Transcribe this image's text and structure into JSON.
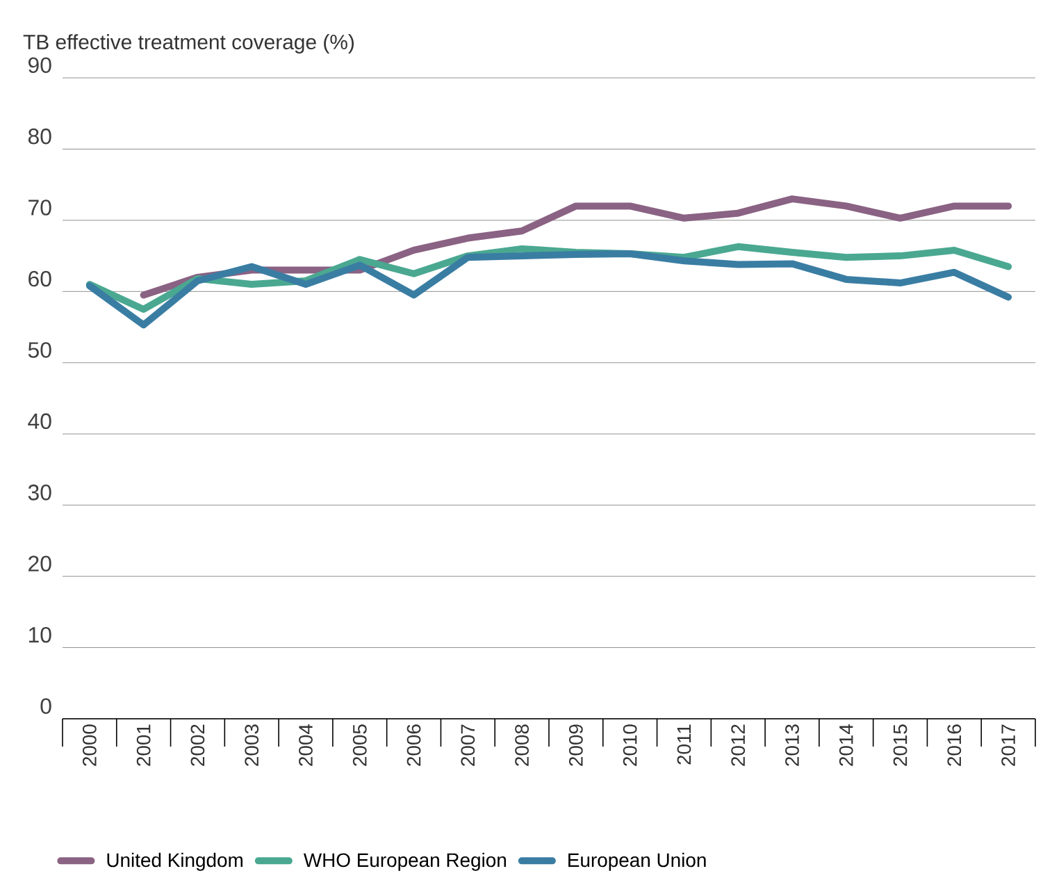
{
  "chart_data": {
    "type": "line",
    "ylabel": "TB effective treatment coverage (%)",
    "categories": [
      "2000",
      "2001",
      "2002",
      "2003",
      "2004",
      "2005",
      "2006",
      "2007",
      "2008",
      "2009",
      "2010",
      "2011",
      "2012",
      "2013",
      "2014",
      "2015",
      "2016",
      "2017"
    ],
    "series": [
      {
        "name": "United Kingdom",
        "color": "#8a6283",
        "values": [
          null,
          59.5,
          62,
          63,
          63,
          63,
          65.8,
          67.5,
          68.5,
          72,
          72,
          70.3,
          71,
          73,
          72,
          70.3,
          72,
          72
        ]
      },
      {
        "name": "WHO European Region",
        "color": "#4aa891",
        "values": [
          61,
          57.5,
          61.8,
          61,
          61.5,
          64.5,
          62.5,
          65,
          66,
          65.5,
          65.3,
          64.8,
          66.3,
          65.5,
          64.8,
          65,
          65.8,
          63.5
        ]
      },
      {
        "name": "European Union",
        "color": "#3a7da3",
        "values": [
          60.8,
          55.3,
          61.5,
          63.5,
          61,
          63.7,
          59.5,
          64.8,
          65,
          65.2,
          65.3,
          64.3,
          63.8,
          63.9,
          61.7,
          61.2,
          62.7,
          59.2
        ]
      }
    ],
    "ylim": [
      0,
      90
    ],
    "yticks": [
      0,
      10,
      20,
      30,
      40,
      50,
      60,
      70,
      80,
      90
    ],
    "grid": "y",
    "legend": "bottom",
    "marker": "none",
    "line_style": "solid"
  }
}
